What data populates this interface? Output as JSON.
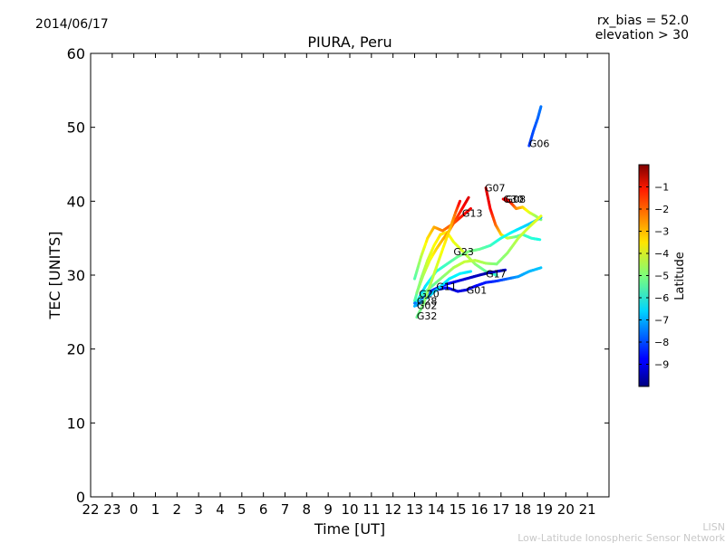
{
  "header": {
    "date": "2014/06/17",
    "rx_bias": "rx_bias = 52.0",
    "elevation": "elevation > 30"
  },
  "footer": {
    "line1": "LISN",
    "line2": "Low-Latitude Ionospheric Sensor Network"
  },
  "chart_data": {
    "type": "line",
    "title": "PIURA, Peru",
    "xlabel": "Time [UT]",
    "ylabel": "TEC [UNITS]",
    "xlim": [
      22,
      46
    ],
    "ylim": [
      0,
      60
    ],
    "x_ticks": [
      22,
      23,
      24,
      25,
      26,
      27,
      28,
      29,
      30,
      31,
      32,
      33,
      34,
      35,
      36,
      37,
      38,
      39,
      40,
      41,
      42,
      43,
      44,
      45
    ],
    "x_tick_labels": [
      "22",
      "23",
      "0",
      "1",
      "2",
      "3",
      "4",
      "5",
      "6",
      "7",
      "8",
      "9",
      "10",
      "11",
      "12",
      "13",
      "14",
      "15",
      "16",
      "17",
      "18",
      "19",
      "20",
      "21"
    ],
    "y_ticks": [
      0,
      10,
      20,
      30,
      40,
      50,
      60
    ],
    "y_tick_labels": [
      "0",
      "10",
      "20",
      "30",
      "40",
      "50",
      "60"
    ],
    "colorbar": {
      "label": "Latitude",
      "min": -10,
      "max": 0,
      "ticks": [
        -1,
        -2,
        -3,
        -4,
        -5,
        -6,
        -7,
        -8,
        -9
      ],
      "tick_labels": [
        "−1",
        "−2",
        "−3",
        "−4",
        "−5",
        "−6",
        "−7",
        "−8",
        "−9"
      ]
    },
    "series": [
      {
        "name": "G06",
        "label_at": [
          42.3,
          47.8
        ],
        "points": [
          [
            42.3,
            47.5,
            -8.2
          ],
          [
            42.5,
            49.5,
            -8.0
          ],
          [
            42.7,
            51.2,
            -7.8
          ],
          [
            42.85,
            52.8,
            -7.6
          ]
        ]
      },
      {
        "name": "G07",
        "label_at": [
          40.25,
          41.8
        ],
        "points": [
          [
            40.3,
            41.8,
            -0.8
          ],
          [
            40.5,
            39.0,
            -1.2
          ],
          [
            40.75,
            36.8,
            -2.2
          ],
          [
            41.0,
            35.5,
            -3.2
          ],
          [
            41.3,
            35.0,
            -4.2
          ],
          [
            41.7,
            35.2,
            -5.2
          ],
          [
            42.0,
            35.5,
            -5.6
          ],
          [
            42.4,
            35.0,
            -5.8
          ],
          [
            42.8,
            34.8,
            -6.0
          ]
        ]
      },
      {
        "name": "G08",
        "label_at": [
          41.2,
          40.3
        ],
        "points": [
          [
            41.2,
            40.4,
            -1.0
          ],
          [
            41.45,
            39.8,
            -1.4
          ],
          [
            41.7,
            39.0,
            -2.5
          ],
          [
            42.0,
            39.2,
            -3.2
          ],
          [
            42.3,
            38.5,
            -4.0
          ],
          [
            42.6,
            38.0,
            -4.6
          ],
          [
            42.85,
            37.5,
            -5.0
          ]
        ]
      },
      {
        "name": "G30",
        "label_at": [
          41.1,
          40.3
        ],
        "points": [
          [
            41.1,
            40.3,
            -1.1
          ],
          [
            41.3,
            40.0,
            -1.3
          ]
        ]
      },
      {
        "name": "G13",
        "label_at": [
          39.2,
          38.4
        ],
        "points": [
          [
            37.0,
            29.5,
            -5.5
          ],
          [
            37.3,
            32.5,
            -4.5
          ],
          [
            37.6,
            35.0,
            -3.5
          ],
          [
            37.9,
            36.5,
            -3.0
          ],
          [
            38.3,
            36.0,
            -2.5
          ],
          [
            38.8,
            37.0,
            -2.0
          ],
          [
            39.2,
            38.0,
            -1.5
          ],
          [
            39.6,
            39.0,
            -1.1
          ]
        ]
      },
      {
        "name": "G23",
        "label_at": [
          38.8,
          33.2
        ],
        "points": [
          [
            37.0,
            26.5,
            -5.5
          ],
          [
            37.3,
            29.5,
            -5.0
          ],
          [
            37.6,
            32.0,
            -4.3
          ],
          [
            37.9,
            34.0,
            -3.8
          ],
          [
            38.2,
            35.5,
            -3.5
          ],
          [
            38.5,
            35.8,
            -3.6
          ],
          [
            38.8,
            34.5,
            -3.9
          ],
          [
            39.3,
            33.0,
            -4.2
          ],
          [
            39.8,
            31.5,
            -4.8
          ],
          [
            40.3,
            30.5,
            -5.3
          ],
          [
            40.8,
            30.0,
            -5.8
          ]
        ]
      },
      {
        "name": "G20",
        "label_at": [
          37.2,
          27.5
        ],
        "points": [
          [
            37.1,
            27.6,
            -5.0
          ],
          [
            37.4,
            30.0,
            -4.6
          ],
          [
            37.7,
            32.0,
            -4.0
          ],
          [
            38.0,
            33.5,
            -3.4
          ],
          [
            38.3,
            34.8,
            -3.0
          ],
          [
            38.6,
            36.0,
            -2.6
          ],
          [
            38.9,
            37.5,
            -2.0
          ],
          [
            39.2,
            39.0,
            -1.4
          ],
          [
            39.5,
            40.5,
            -0.9
          ]
        ]
      },
      {
        "name": "G11",
        "label_at": [
          38.0,
          28.5
        ],
        "points": [
          [
            37.0,
            25.8,
            -7.0
          ],
          [
            37.5,
            28.5,
            -6.5
          ],
          [
            38.0,
            30.5,
            -6.0
          ],
          [
            38.5,
            31.5,
            -5.6
          ],
          [
            39.0,
            32.5,
            -5.2
          ],
          [
            39.5,
            33.2,
            -5.0
          ],
          [
            40.0,
            33.5,
            -5.2
          ],
          [
            40.5,
            34.0,
            -5.6
          ],
          [
            41.0,
            35.0,
            -6.0
          ],
          [
            41.5,
            35.8,
            -6.3
          ],
          [
            42.0,
            36.5,
            -6.6
          ],
          [
            42.5,
            37.2,
            -6.8
          ],
          [
            42.85,
            37.8,
            -7.0
          ]
        ]
      },
      {
        "name": "G01",
        "label_at": [
          39.4,
          28.0
        ],
        "points": [
          [
            37.0,
            26.2,
            -7.5
          ],
          [
            37.5,
            27.3,
            -7.8
          ],
          [
            38.0,
            28.0,
            -8.2
          ],
          [
            38.5,
            28.3,
            -8.6
          ],
          [
            39.0,
            27.8,
            -9.0
          ],
          [
            39.4,
            28.0,
            -9.1
          ],
          [
            39.8,
            28.5,
            -8.8
          ],
          [
            40.3,
            29.0,
            -8.5
          ],
          [
            40.8,
            29.2,
            -8.3
          ],
          [
            41.3,
            29.5,
            -7.8
          ],
          [
            41.8,
            29.8,
            -7.2
          ],
          [
            42.3,
            30.5,
            -7.0
          ],
          [
            42.85,
            31.0,
            -6.8
          ]
        ]
      },
      {
        "name": "G17",
        "label_at": [
          40.3,
          30.2
        ],
        "points": [
          [
            37.5,
            27.5,
            -8.0
          ],
          [
            38.0,
            28.2,
            -8.3
          ],
          [
            38.5,
            28.8,
            -8.6
          ],
          [
            39.0,
            29.2,
            -9.0
          ],
          [
            39.5,
            29.6,
            -9.2
          ],
          [
            40.0,
            30.0,
            -9.4
          ],
          [
            40.4,
            30.3,
            -9.6
          ],
          [
            40.8,
            30.5,
            -9.4
          ],
          [
            41.2,
            30.7,
            -9.2
          ]
        ]
      },
      {
        "name": "G28",
        "label_at": [
          37.1,
          26.5
        ],
        "points": [
          [
            37.1,
            26.5,
            -6.0
          ],
          [
            37.6,
            28.0,
            -5.5
          ],
          [
            38.2,
            29.5,
            -5.0
          ],
          [
            38.8,
            31.0,
            -4.6
          ],
          [
            39.3,
            31.8,
            -4.3
          ],
          [
            39.8,
            32.0,
            -4.4
          ],
          [
            40.3,
            31.6,
            -4.6
          ],
          [
            40.8,
            31.5,
            -5.0
          ],
          [
            41.3,
            33.0,
            -4.8
          ],
          [
            41.8,
            35.0,
            -4.4
          ],
          [
            42.3,
            36.5,
            -4.2
          ],
          [
            42.85,
            38.0,
            -4.0
          ]
        ]
      },
      {
        "name": "G02",
        "label_at": [
          37.1,
          25.9
        ],
        "points": [
          [
            37.1,
            25.9,
            -7.2
          ],
          [
            37.6,
            27.0,
            -6.8
          ],
          [
            38.1,
            28.2,
            -6.6
          ],
          [
            38.6,
            29.5,
            -6.4
          ],
          [
            39.1,
            30.2,
            -6.3
          ],
          [
            39.6,
            30.5,
            -6.5
          ]
        ]
      },
      {
        "name": "G32",
        "label_at": [
          37.1,
          24.5
        ],
        "points": [
          [
            37.1,
            24.3,
            -5.2
          ],
          [
            37.4,
            26.0,
            -5.0
          ],
          [
            37.7,
            28.5,
            -4.6
          ],
          [
            38.0,
            31.0,
            -4.2
          ],
          [
            38.3,
            33.5,
            -3.8
          ],
          [
            38.6,
            36.0,
            -3.3
          ],
          [
            38.9,
            38.5,
            -2.3
          ],
          [
            39.1,
            40.0,
            -1.2
          ]
        ]
      }
    ]
  }
}
